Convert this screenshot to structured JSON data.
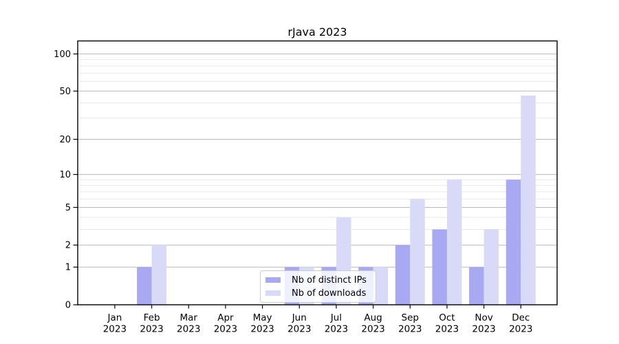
{
  "chart_data": {
    "type": "bar",
    "title": "rJava 2023",
    "categories": [
      "Jan",
      "Feb",
      "Mar",
      "Apr",
      "May",
      "Jun",
      "Jul",
      "Aug",
      "Sep",
      "Oct",
      "Nov",
      "Dec"
    ],
    "x_tick_second_line": "2023",
    "series": [
      {
        "name": "Nb of distinct IPs",
        "color": "#a8a9f2",
        "values": [
          0,
          1,
          0,
          0,
          0,
          1,
          1,
          1,
          2,
          3,
          1,
          9
        ]
      },
      {
        "name": "Nb of downloads",
        "color": "#d9daf8",
        "values": [
          0,
          2,
          0,
          0,
          0,
          1,
          4,
          1,
          6,
          9,
          3,
          46
        ]
      }
    ],
    "y_axis": {
      "scale": "log1p",
      "major_ticks": [
        0,
        1,
        2,
        5,
        10,
        20,
        50,
        100
      ],
      "minor_gridlines": [
        3,
        4,
        6,
        7,
        8,
        9,
        30,
        40,
        60,
        70,
        80,
        90
      ],
      "ylim_top": 128
    },
    "colors": {
      "grid_major": "#b8b8b8",
      "grid_minor": "#e8e8e8",
      "axis": "#000000",
      "text": "#000000"
    },
    "legend": {
      "position": "lower-center-inside",
      "entries": [
        "Nb of distinct IPs",
        "Nb of downloads"
      ]
    },
    "grid": true
  }
}
